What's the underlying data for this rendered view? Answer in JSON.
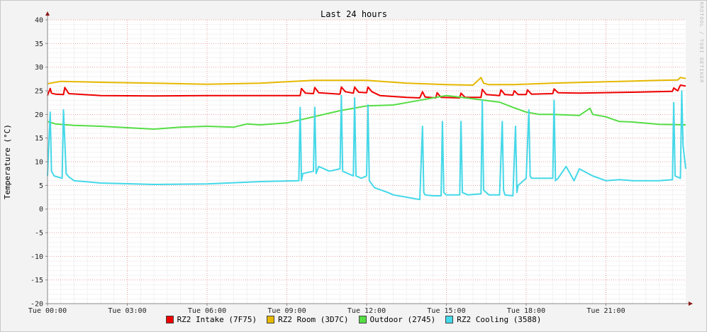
{
  "chart_data": {
    "type": "line",
    "title": "Last 24 hours",
    "ylabel": "Temperature (°C)",
    "watermark": "RRDTOOL / TOBI OETIKER",
    "ylim": [
      -20,
      40
    ],
    "yticks": [
      -20,
      -15,
      -10,
      -5,
      0,
      5,
      10,
      15,
      20,
      25,
      30,
      35,
      40
    ],
    "xlim_hours": [
      0,
      24
    ],
    "xticks": [
      {
        "hour": 0,
        "label": "Tue 00:00"
      },
      {
        "hour": 3,
        "label": "Tue 03:00"
      },
      {
        "hour": 6,
        "label": "Tue 06:00"
      },
      {
        "hour": 9,
        "label": "Tue 09:00"
      },
      {
        "hour": 12,
        "label": "Tue 12:00"
      },
      {
        "hour": 15,
        "label": "Tue 15:00"
      },
      {
        "hour": 18,
        "label": "Tue 18:00"
      },
      {
        "hour": 21,
        "label": "Tue 21:00"
      }
    ],
    "grid": true,
    "legend_position": "bottom",
    "series": [
      {
        "name": "RZ2 Intake (7F75)",
        "color": "#ee0000",
        "x": [
          0,
          0.1,
          0.15,
          0.3,
          0.6,
          0.65,
          0.8,
          2,
          4,
          6,
          8,
          9.5,
          9.55,
          9.7,
          10,
          10.05,
          10.2,
          11,
          11.05,
          11.2,
          11.5,
          11.55,
          11.7,
          12,
          12.05,
          12.2,
          12.5,
          13.5,
          14,
          14.1,
          14.2,
          14.6,
          14.65,
          14.8,
          15.5,
          15.55,
          15.7,
          16.3,
          16.35,
          16.5,
          17,
          17.05,
          17.2,
          17.5,
          17.55,
          17.7,
          18,
          18.05,
          18.2,
          19,
          19.05,
          19.2,
          20,
          22,
          23.5,
          23.55,
          23.7,
          23.8,
          24
        ],
        "y": [
          24,
          25.5,
          24.5,
          24.3,
          24.2,
          25.7,
          24.4,
          24,
          23.9,
          24,
          24,
          24,
          25.5,
          24.5,
          24.4,
          25.7,
          24.6,
          24.3,
          25.8,
          24.8,
          24.5,
          25.8,
          24.7,
          24.6,
          25.8,
          24.8,
          24,
          23.6,
          23.5,
          24.8,
          23.7,
          23.5,
          24.6,
          23.6,
          23.5,
          24.5,
          23.6,
          23.6,
          25.3,
          24.2,
          24,
          25.2,
          24.2,
          24.1,
          25,
          24.2,
          24.2,
          25.2,
          24.3,
          24.4,
          25.4,
          24.6,
          24.5,
          24.7,
          24.9,
          25.6,
          25,
          26.2,
          26
        ]
      },
      {
        "name": "RZ2 Room (3D7C)",
        "color": "#e6b800",
        "x": [
          0,
          0.5,
          2,
          4,
          6,
          8,
          10,
          12,
          13.5,
          15,
          16,
          16.3,
          16.4,
          16.6,
          17.5,
          19,
          21,
          23,
          23.7,
          23.8,
          24
        ],
        "y": [
          26.5,
          27,
          26.8,
          26.6,
          26.4,
          26.6,
          27.2,
          27.2,
          26.6,
          26.3,
          26.2,
          27.8,
          26.6,
          26.3,
          26.3,
          26.6,
          26.9,
          27.2,
          27.3,
          27.8,
          27.6
        ]
      },
      {
        "name": "Outdoor (2745)",
        "color": "#55dd44",
        "x": [
          0,
          0.3,
          1,
          2,
          3,
          4,
          5,
          6,
          7,
          7.5,
          8,
          9,
          10,
          11,
          12,
          13,
          13.5,
          14,
          14.5,
          15,
          16,
          17,
          17.5,
          18,
          18.5,
          19,
          20,
          20.4,
          20.5,
          21,
          21.5,
          22,
          23,
          24
        ],
        "y": [
          18.5,
          18,
          17.7,
          17.5,
          17.2,
          16.9,
          17.3,
          17.5,
          17.3,
          18,
          17.8,
          18.2,
          19.5,
          20.8,
          21.8,
          22,
          22.5,
          23,
          23.5,
          24,
          23.3,
          22.6,
          21.5,
          20.5,
          20,
          20,
          19.8,
          21.3,
          20,
          19.5,
          18.5,
          18.4,
          17.9,
          17.8
        ]
      },
      {
        "name": "RZ2 Cooling (3588)",
        "color": "#44d8e8",
        "x": [
          0,
          0.1,
          0.15,
          0.25,
          0.55,
          0.6,
          0.7,
          0.8,
          1,
          2,
          4,
          6,
          8,
          9.45,
          9.5,
          9.55,
          9.6,
          10,
          10.05,
          10.1,
          10.2,
          10.6,
          11,
          11.05,
          11.1,
          11.5,
          11.55,
          11.6,
          11.8,
          12,
          12.05,
          12.1,
          12.3,
          12.8,
          13,
          13.5,
          14,
          14.1,
          14.15,
          14.2,
          14.5,
          14.8,
          14.85,
          14.9,
          15,
          15.5,
          15.55,
          15.6,
          15.8,
          16.3,
          16.35,
          16.4,
          16.6,
          17,
          17.1,
          17.15,
          17.2,
          17.5,
          17.6,
          17.65,
          17.7,
          18,
          18.1,
          18.15,
          18.2,
          19,
          19.05,
          19.1,
          19.2,
          19.5,
          19.8,
          20,
          20.5,
          21,
          21.5,
          22,
          23,
          23.5,
          23.55,
          23.6,
          23.8,
          23.85,
          23.9,
          24
        ],
        "y": [
          7,
          20.5,
          8,
          7,
          6.5,
          21,
          7.5,
          6.8,
          6,
          5.5,
          5.2,
          5.3,
          5.8,
          6,
          21.5,
          6,
          7.5,
          8,
          21.5,
          7.5,
          9,
          8,
          8.5,
          24,
          8,
          7,
          23.5,
          7,
          6.5,
          7,
          22,
          6,
          4.5,
          3.5,
          3,
          2.5,
          2,
          17.5,
          3.5,
          3,
          2.8,
          2.8,
          18.5,
          3.5,
          3,
          3,
          18.5,
          3.5,
          3,
          3.2,
          23,
          4,
          3,
          3,
          18.5,
          4,
          3,
          2.8,
          17.5,
          3.5,
          5,
          6.5,
          21,
          7,
          6.5,
          6.5,
          23,
          6,
          6.5,
          9,
          6,
          8.5,
          7,
          6,
          6.2,
          6,
          6,
          6.2,
          22.5,
          7,
          6.5,
          25,
          13.5,
          8.5
        ]
      }
    ]
  }
}
